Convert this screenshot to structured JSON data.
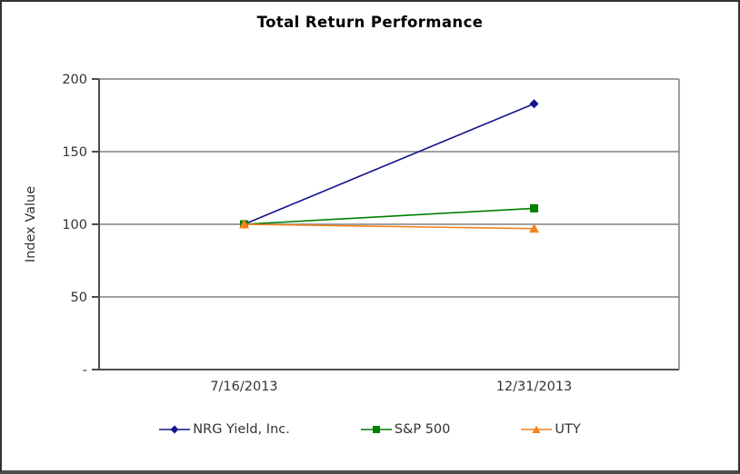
{
  "chart_data": {
    "type": "line",
    "title": "Total Return Performance",
    "xlabel": "",
    "ylabel": "Index Value",
    "categories": [
      "7/16/2013",
      "12/31/2013"
    ],
    "series": [
      {
        "name": "NRG Yield, Inc.",
        "color": "#14148C",
        "marker": "diamond",
        "values": [
          100,
          183
        ]
      },
      {
        "name": "S&P 500",
        "color": "#008000",
        "marker": "square",
        "values": [
          100,
          111
        ]
      },
      {
        "name": "UTY",
        "color": "#F58220",
        "marker": "triangle",
        "values": [
          100,
          97
        ]
      }
    ],
    "yticks": [
      {
        "value": 0,
        "label": "-"
      },
      {
        "value": 50,
        "label": "50"
      },
      {
        "value": 100,
        "label": "100"
      },
      {
        "value": 150,
        "label": "150"
      },
      {
        "value": 200,
        "label": "200"
      }
    ],
    "ylim": [
      0,
      200
    ],
    "grid": "horizontal",
    "legend_position": "bottom"
  },
  "colors": {
    "grid": "#808080",
    "axis": "#4d4d4d",
    "text": "#333333",
    "frame_border": "#333333",
    "background": "#ffffff"
  }
}
